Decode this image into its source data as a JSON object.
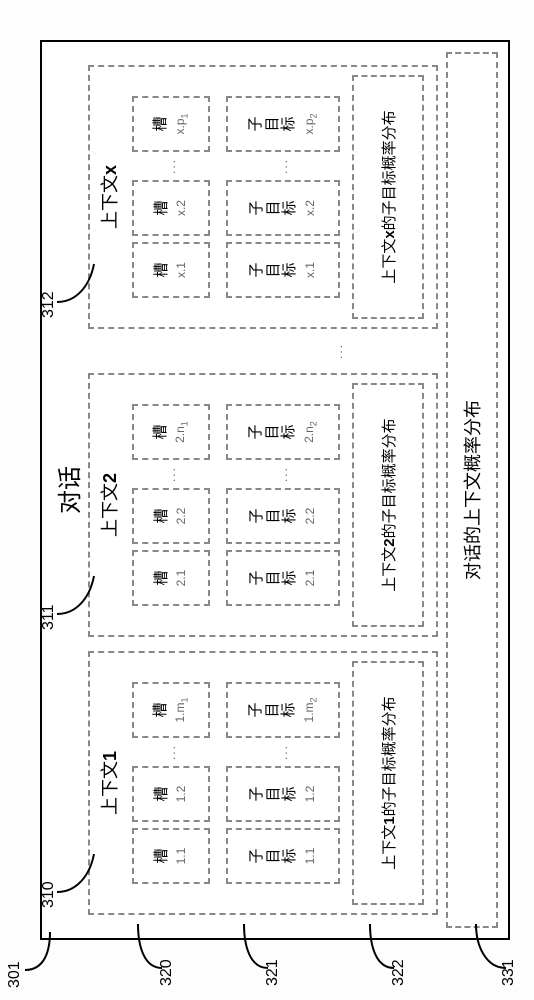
{
  "dialog": {
    "title": "对话",
    "ref_outer": "301",
    "context_dist_label": "对话的上下文概率分布",
    "ref_context_dist": "331"
  },
  "dots": "...",
  "slot_word": "槽",
  "subgoal_word": "子目标",
  "contexts": [
    {
      "ref": "310",
      "title_prefix": "上下文",
      "title_suffix_bold": "1",
      "row_slot_ref": "320",
      "row_sub_ref": "321",
      "dist_ref": "322",
      "slots": [
        {
          "idx": "1.1"
        },
        {
          "idx": "1.2"
        },
        {
          "idx_html": "1.m<span class='sub'>1</span>"
        }
      ],
      "subgoals": [
        {
          "idx": "1.1"
        },
        {
          "idx": "1.2"
        },
        {
          "idx_html": "1.m<span class='sub'>2</span>"
        }
      ],
      "dist_label_pre": "上下文",
      "dist_label_bold": "1",
      "dist_label_post": "的子目标概率分布"
    },
    {
      "ref": "311",
      "title_prefix": "上下文",
      "title_suffix_bold": "2",
      "slots": [
        {
          "idx": "2.1"
        },
        {
          "idx": "2.2"
        },
        {
          "idx_html": "2.n<span class='sub'>1</span>"
        }
      ],
      "subgoals": [
        {
          "idx": "2.1"
        },
        {
          "idx": "2.2"
        },
        {
          "idx_html": "2.n<span class='sub'>2</span>"
        }
      ],
      "dist_label_pre": "上下文",
      "dist_label_bold": "2",
      "dist_label_post": "的子目标概率分布"
    },
    {
      "ref": "312",
      "title_prefix": "上下文",
      "title_suffix_bold": "x",
      "slots": [
        {
          "idx": "x.1"
        },
        {
          "idx": "x.2"
        },
        {
          "idx_html": "x.p<span class='sub'>1</span>"
        }
      ],
      "subgoals": [
        {
          "idx": "x.1"
        },
        {
          "idx": "x.2"
        },
        {
          "idx_html": "x.p<span class='sub'>2</span>"
        }
      ],
      "dist_label_pre": "上下文",
      "dist_label_bold": "x",
      "dist_label_post": "的子目标概率分布"
    }
  ]
}
